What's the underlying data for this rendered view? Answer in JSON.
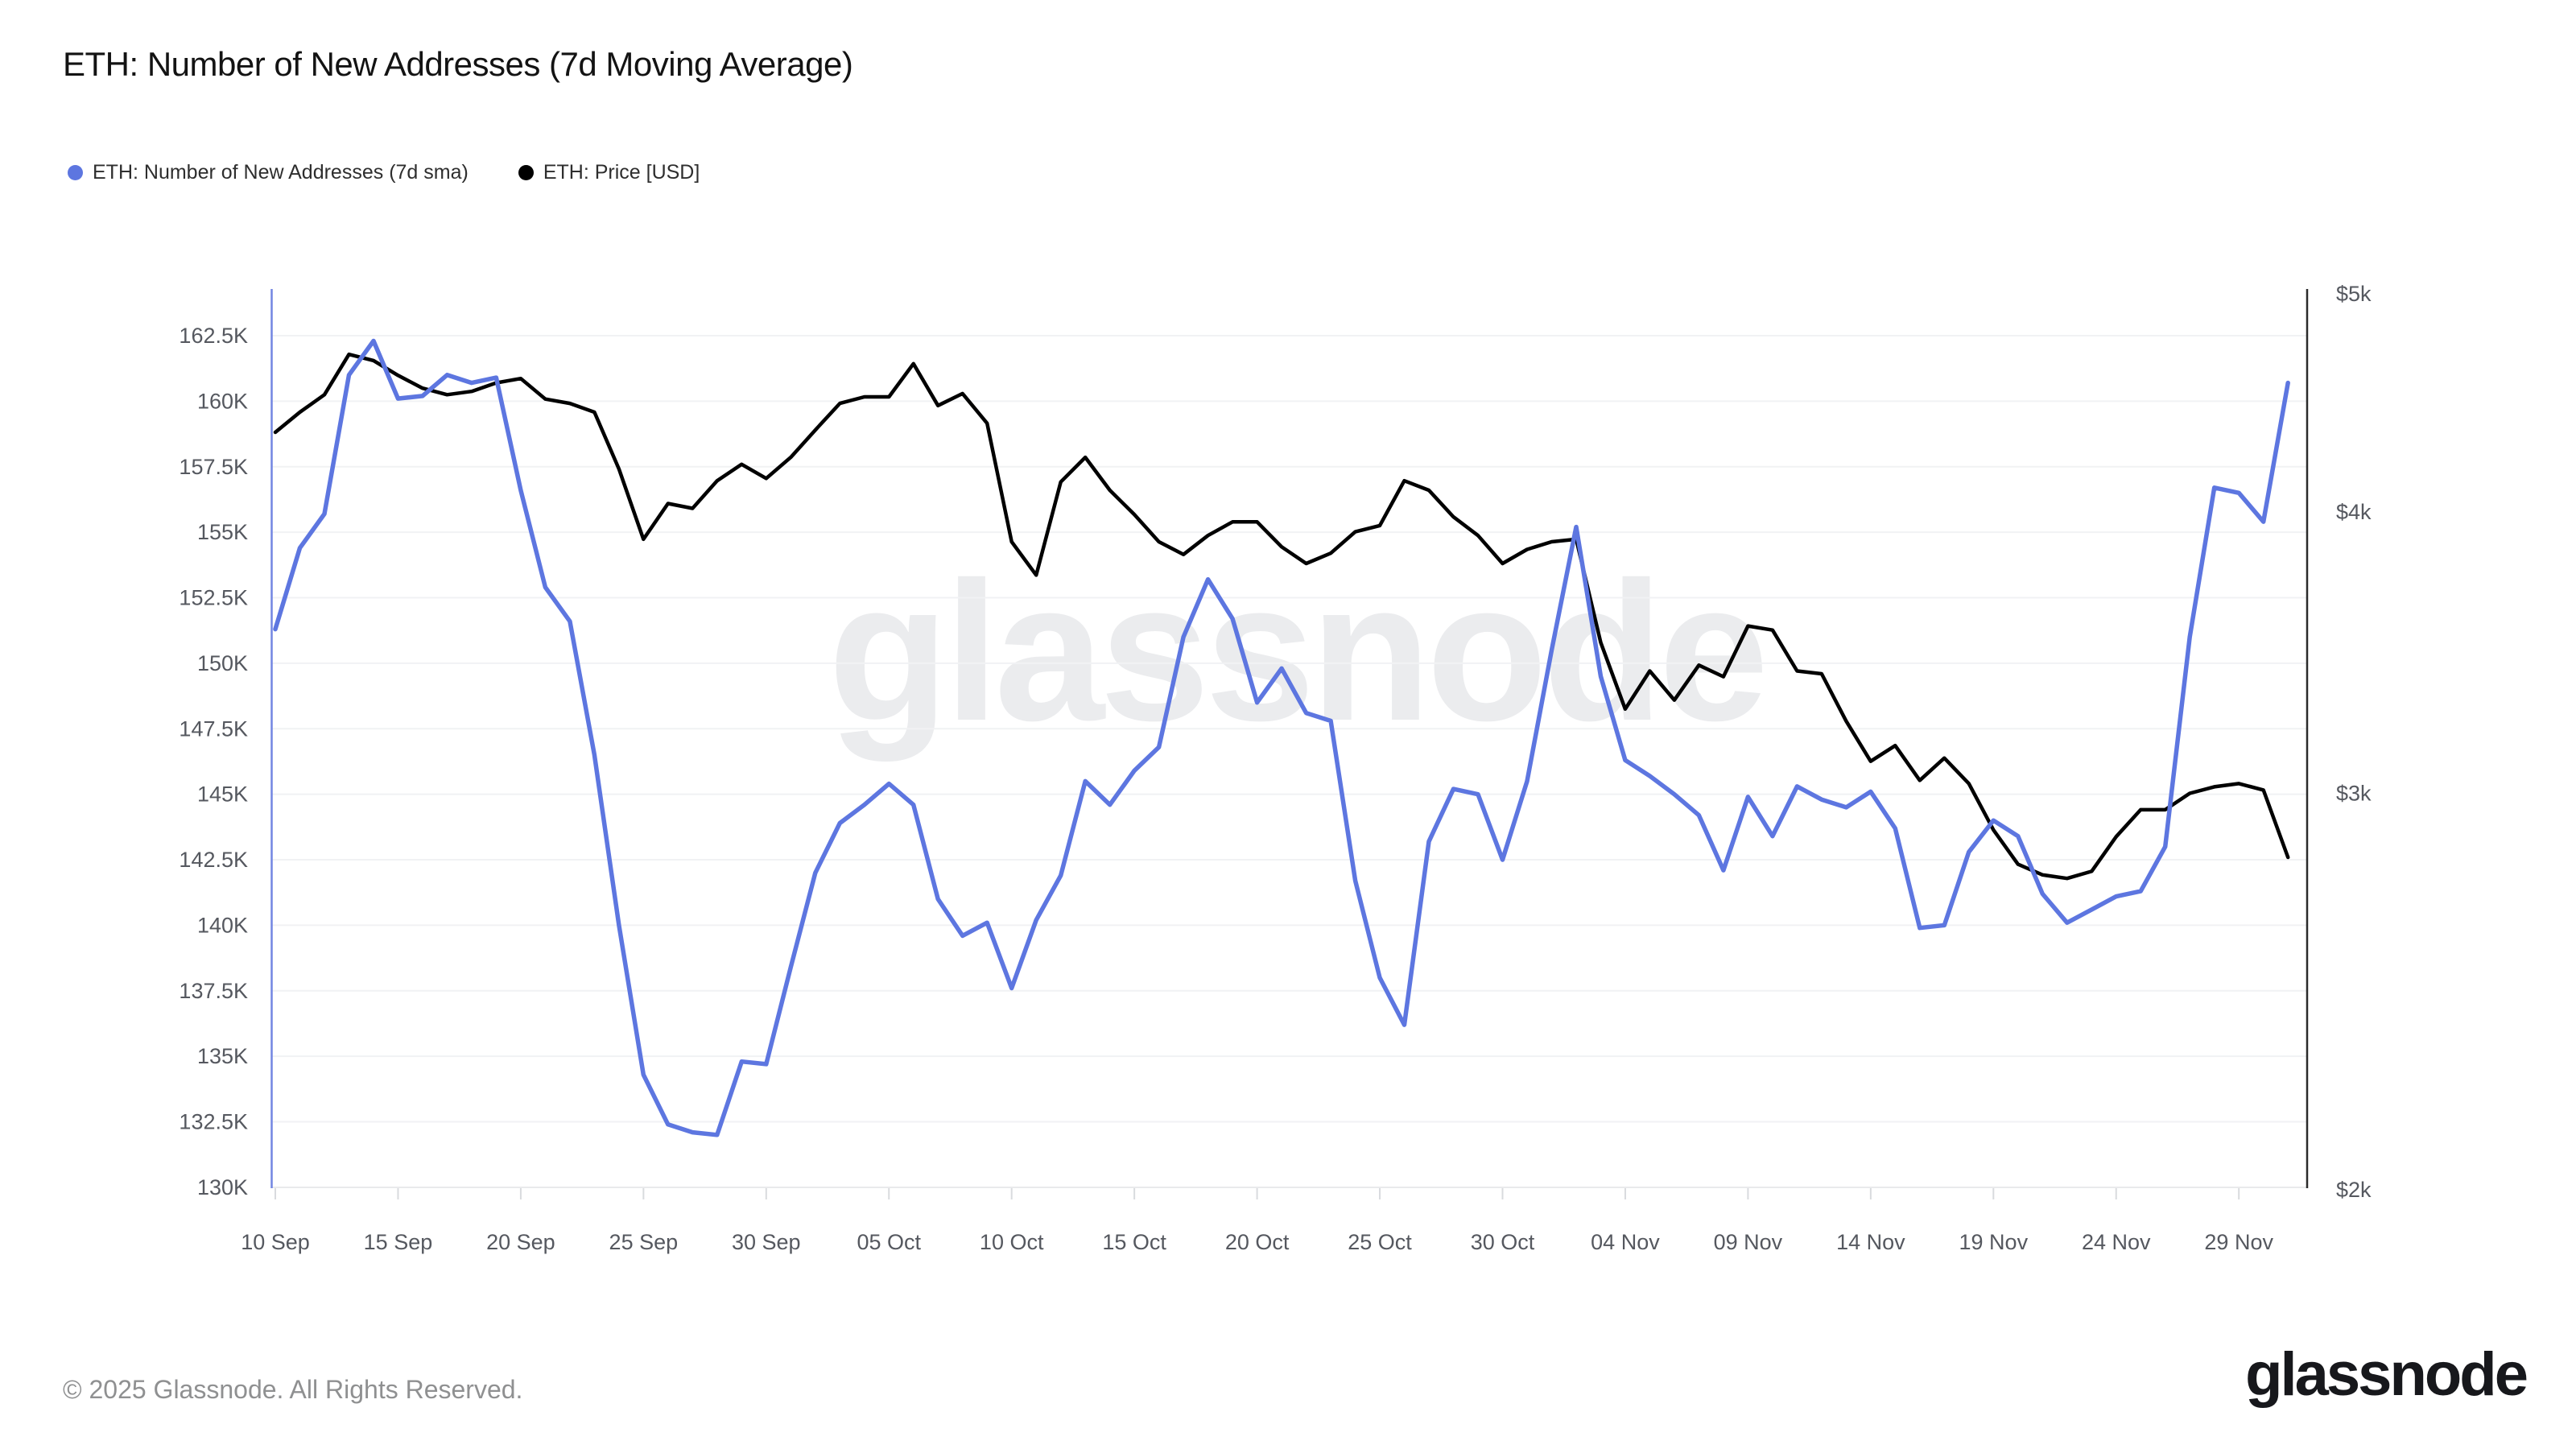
{
  "title": "ETH: Number of New Addresses (7d Moving Average)",
  "legend": {
    "items": [
      {
        "label": "ETH: Number of New Addresses (7d sma)",
        "color": "#5d76e0"
      },
      {
        "label": "ETH: Price [USD]",
        "color": "#000000"
      }
    ]
  },
  "watermark": "glassnode",
  "footer": {
    "copyright": "© 2025 Glassnode. All Rights Reserved.",
    "brand": "glassnode"
  },
  "colors": {
    "addresses_line": "#5d76e0",
    "price_line": "#000000",
    "gridline": "#f1f2f4",
    "bottom_line": "#e9eaec",
    "tick_mark": "#d9dbde",
    "left_axis_line": "#7285e2",
    "right_axis_line": "#2a2a2a",
    "axis_label": "#55585f"
  },
  "chart_data": {
    "type": "line",
    "title": "ETH: Number of New Addresses (7d Moving Average)",
    "grid": "horizontal-only",
    "legend_position": "top-left",
    "x": [
      "10 Sep",
      "11 Sep",
      "12 Sep",
      "13 Sep",
      "14 Sep",
      "15 Sep",
      "16 Sep",
      "17 Sep",
      "18 Sep",
      "19 Sep",
      "20 Sep",
      "21 Sep",
      "22 Sep",
      "23 Sep",
      "24 Sep",
      "25 Sep",
      "26 Sep",
      "27 Sep",
      "28 Sep",
      "29 Sep",
      "30 Sep",
      "01 Oct",
      "02 Oct",
      "03 Oct",
      "04 Oct",
      "05 Oct",
      "06 Oct",
      "07 Oct",
      "08 Oct",
      "09 Oct",
      "10 Oct",
      "11 Oct",
      "12 Oct",
      "13 Oct",
      "14 Oct",
      "15 Oct",
      "16 Oct",
      "17 Oct",
      "18 Oct",
      "19 Oct",
      "20 Oct",
      "21 Oct",
      "22 Oct",
      "23 Oct",
      "24 Oct",
      "25 Oct",
      "26 Oct",
      "27 Oct",
      "28 Oct",
      "29 Oct",
      "30 Oct",
      "31 Oct",
      "01 Nov",
      "02 Nov",
      "03 Nov",
      "04 Nov",
      "05 Nov",
      "06 Nov",
      "07 Nov",
      "08 Nov",
      "09 Nov",
      "10 Nov",
      "11 Nov",
      "12 Nov",
      "13 Nov",
      "14 Nov",
      "15 Nov",
      "16 Nov",
      "17 Nov",
      "18 Nov",
      "19 Nov",
      "20 Nov",
      "21 Nov",
      "22 Nov",
      "23 Nov",
      "24 Nov",
      "25 Nov",
      "26 Nov",
      "27 Nov",
      "28 Nov",
      "29 Nov",
      "30 Nov",
      "01 Dec"
    ],
    "x_tick_labels": [
      "10 Sep",
      "15 Sep",
      "20 Sep",
      "25 Sep",
      "30 Sep",
      "05 Oct",
      "10 Oct",
      "15 Oct",
      "20 Oct",
      "25 Oct",
      "30 Oct",
      "04 Nov",
      "09 Nov",
      "14 Nov",
      "19 Nov",
      "24 Nov",
      "29 Nov"
    ],
    "x_tick_indices": [
      0,
      5,
      10,
      15,
      20,
      25,
      30,
      35,
      40,
      45,
      50,
      55,
      60,
      65,
      70,
      75,
      80
    ],
    "series": [
      {
        "name": "ETH: Price [USD]",
        "axis": "right",
        "color": "#000000",
        "unit": "USD",
        "values": [
          4340,
          4430,
          4510,
          4700,
          4670,
          4600,
          4540,
          4510,
          4525,
          4565,
          4585,
          4490,
          4470,
          4430,
          4180,
          3890,
          4035,
          4015,
          4130,
          4200,
          4140,
          4230,
          4350,
          4470,
          4500,
          4500,
          4655,
          4460,
          4515,
          4380,
          3880,
          3750,
          4125,
          4230,
          4090,
          3990,
          3880,
          3830,
          3905,
          3960,
          3960,
          3860,
          3795,
          3835,
          3920,
          3945,
          4130,
          4090,
          3980,
          3905,
          3795,
          3850,
          3880,
          3890,
          3500,
          3270,
          3400,
          3300,
          3420,
          3380,
          3560,
          3545,
          3400,
          3390,
          3230,
          3100,
          3150,
          3040,
          3110,
          3030,
          2890,
          2790,
          2760,
          2750,
          2770,
          2870,
          2950,
          2950,
          3000,
          3020,
          3030,
          3010,
          2810
        ]
      },
      {
        "name": "ETH: Number of New Addresses (7d sma)",
        "axis": "left",
        "color": "#5d76e0",
        "unit": "addresses (thousands)",
        "values": [
          151.3,
          154.4,
          155.7,
          161.0,
          162.3,
          160.1,
          160.2,
          161.0,
          160.7,
          160.9,
          156.6,
          152.9,
          151.6,
          146.5,
          140.0,
          134.3,
          132.4,
          132.1,
          132.0,
          134.8,
          134.7,
          138.4,
          142.0,
          143.9,
          144.6,
          145.4,
          144.6,
          141.0,
          139.6,
          140.1,
          137.6,
          140.2,
          141.9,
          145.5,
          144.6,
          145.9,
          146.8,
          151.0,
          153.2,
          151.7,
          148.5,
          149.8,
          148.1,
          147.8,
          141.7,
          138.0,
          136.2,
          143.2,
          145.2,
          145.0,
          142.5,
          145.5,
          150.5,
          155.2,
          149.5,
          146.3,
          145.7,
          145.0,
          144.2,
          142.1,
          144.9,
          143.4,
          145.3,
          144.8,
          144.5,
          145.1,
          143.7,
          139.9,
          140.0,
          142.8,
          144.0,
          143.4,
          141.2,
          140.1,
          140.6,
          141.1,
          141.3,
          143.0,
          151.0,
          156.7,
          156.5,
          155.4,
          160.7
        ]
      }
    ],
    "y_left": {
      "unit": "thousands of addresses",
      "scale": "linear",
      "min": 130,
      "max": 162.5,
      "tick_step": 2.5,
      "tick_labels": [
        "162.5K",
        "160K",
        "157.5K",
        "155K",
        "152.5K",
        "150K",
        "147.5K",
        "145K",
        "142.5K",
        "140K",
        "137.5K",
        "135K",
        "132.5K",
        "130K"
      ],
      "tick_values": [
        162.5,
        160,
        157.5,
        155,
        152.5,
        150,
        147.5,
        145,
        142.5,
        140,
        137.5,
        135,
        132.5,
        130
      ]
    },
    "y_right": {
      "unit": "USD",
      "scale": "log",
      "min": 2000,
      "max": 5000,
      "tick_labels": [
        "$5k",
        "$4k",
        "$3k",
        "$2k"
      ],
      "tick_values": [
        5000,
        4000,
        3000,
        2000
      ]
    }
  }
}
